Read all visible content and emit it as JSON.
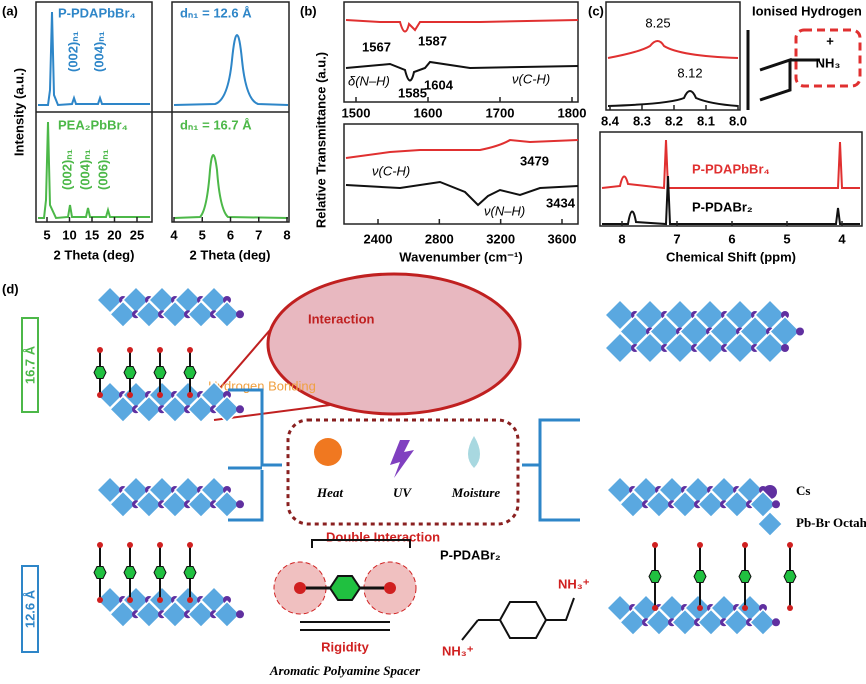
{
  "panel_a": {
    "label": "(a)",
    "y_label": "Intensity (a.u.)",
    "top_left_title": "P-PDAPbBr₄",
    "top_right_title": "dₙ₁ = 12.6 Å",
    "top_peaks": [
      "(002)ₙ₁",
      "(004)ₙ₁"
    ],
    "bottom_left_title": "PEA₂PbBr₄",
    "bottom_right_title": "dₙ₁ = 16.7 Å",
    "bottom_peaks": [
      "(002)ₙ₁",
      "(004)ₙ₁",
      "(006)ₙ₁"
    ],
    "left_xticks": [
      "5",
      "10",
      "15",
      "20",
      "25"
    ],
    "right_xticks": [
      "4",
      "5",
      "6",
      "7",
      "8"
    ],
    "x_label_left": "2 Theta (deg)",
    "x_label_right": "2 Theta (deg)"
  },
  "panel_b": {
    "label": "(b)",
    "y_label": "Relative Transmittance (a.u.)",
    "top_annotations": [
      "1567",
      "1587",
      "1585",
      "1604",
      "δ(N–H)",
      "ν(C-H)"
    ],
    "top_xticks": [
      "1500",
      "1600",
      "1700",
      "1800"
    ],
    "bottom_annotations": [
      "ν(C-H)",
      "ν(N–H)",
      "3479",
      "3434"
    ],
    "bottom_xticks": [
      "2400",
      "2800",
      "3200",
      "3600"
    ],
    "x_label": "Wavenumber (cm⁻¹)"
  },
  "panel_c": {
    "label": "(c)",
    "inset_title": "Ionised Hydrogen",
    "peaks": [
      "8.25",
      "8.12"
    ],
    "inset_xticks": [
      "8.4",
      "8.3",
      "8.2",
      "8.1",
      "8.0"
    ],
    "group": "NH₃",
    "charge": "+",
    "series": [
      "P-PDAPbBr₄",
      "P-PDABr₂"
    ],
    "xticks": [
      "8",
      "7",
      "6",
      "5",
      "4"
    ],
    "x_label": "Chemical Shift (ppm)"
  },
  "panel_d": {
    "label": "(d)",
    "spacing_top": "16.7 Å",
    "spacing_bottom": "12.6 Å",
    "interaction": "Interaction",
    "hydrogen_bonding": "Hydrogen Bonding",
    "stimuli": [
      "Heat",
      "UV",
      "Moisture"
    ],
    "double_interaction": "Double Interaction",
    "rigidity": "Rigidity",
    "spacer_caption": "Aromatic Polyamine Spacer",
    "compound": "P-PDABr₂",
    "amine_groups": [
      "NH₃⁺",
      "NH₃⁺"
    ],
    "legend": [
      "Cs",
      "Pb-Br Octahedron"
    ]
  }
}
